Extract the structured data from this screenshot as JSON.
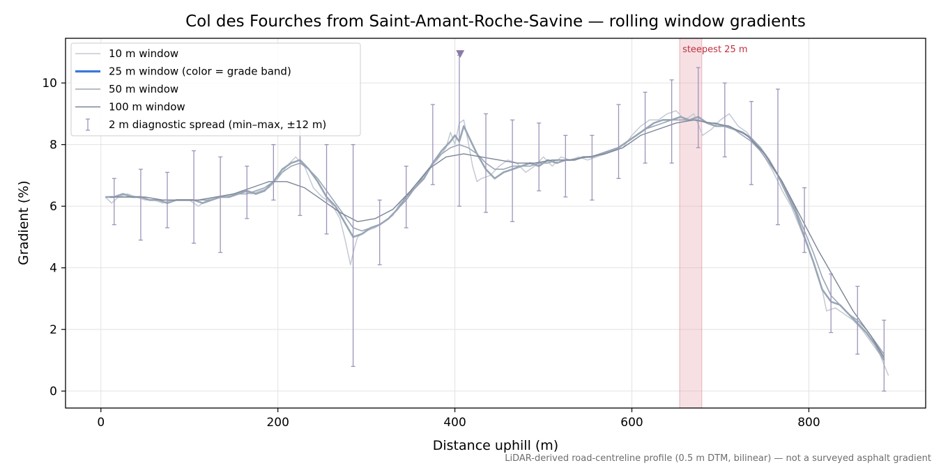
{
  "chart_data": {
    "type": "line",
    "title": "Col des Fourches from Saint-Amant-Roche-Savine — rolling window gradients",
    "xlabel": "Distance uphill (m)",
    "ylabel": "Gradient (%)",
    "xlim": [
      -40,
      932
    ],
    "ylim": [
      -0.55,
      11.45
    ],
    "xticks": [
      0,
      200,
      400,
      600,
      800
    ],
    "yticks": [
      0,
      2,
      4,
      6,
      8,
      10
    ],
    "grid": true,
    "legend_position": "upper-left",
    "footnote": "LiDAR-derived road-centreline profile (0.5 m DTM, bilinear) — not a surveyed asphalt gradient",
    "steepest_band": {
      "label": "steepest 25 m",
      "x_range": [
        654,
        679
      ],
      "color": "#e8a6ae"
    },
    "peak_marker": {
      "x": 406,
      "y": 10.95,
      "color": "#8a7aaa"
    },
    "colors": {
      "w10": "#c3c9d3",
      "w25": "#3b78d8",
      "w25_curve": "#98a6b5",
      "w50": "#9aa5b6",
      "w100": "#7a8496",
      "errorbar": "#9c93b8"
    },
    "series": [
      {
        "name": "10 m window",
        "x": [
          5,
          12,
          20,
          30,
          40,
          50,
          60,
          70,
          80,
          90,
          100,
          110,
          120,
          130,
          140,
          150,
          160,
          170,
          180,
          190,
          200,
          210,
          220,
          230,
          240,
          250,
          260,
          270,
          276,
          282,
          286,
          290,
          300,
          310,
          320,
          330,
          340,
          350,
          360,
          370,
          380,
          390,
          395,
          400,
          405,
          410,
          415,
          420,
          425,
          430,
          440,
          450,
          460,
          470,
          480,
          490,
          500,
          510,
          520,
          530,
          540,
          550,
          560,
          570,
          580,
          590,
          600,
          610,
          620,
          630,
          640,
          650,
          660,
          670,
          680,
          690,
          700,
          710,
          720,
          730,
          740,
          750,
          760,
          770,
          780,
          790,
          800,
          810,
          815,
          820,
          830,
          840,
          850,
          860,
          870,
          880,
          890
        ],
        "values": [
          6.3,
          6.1,
          6.3,
          6.4,
          6.3,
          6.2,
          6.2,
          6.1,
          6.2,
          6.2,
          6.2,
          6.0,
          6.2,
          6.3,
          6.3,
          6.4,
          6.5,
          6.4,
          6.5,
          6.6,
          6.9,
          7.3,
          7.6,
          7.3,
          6.6,
          6.3,
          6.1,
          5.6,
          4.9,
          4.1,
          4.6,
          5.0,
          5.2,
          5.3,
          5.5,
          5.7,
          6.2,
          6.4,
          6.8,
          7.2,
          7.5,
          7.9,
          8.4,
          8.0,
          8.7,
          8.8,
          8.1,
          7.3,
          6.8,
          6.9,
          7.0,
          7.3,
          7.5,
          7.4,
          7.1,
          7.3,
          7.6,
          7.3,
          7.6,
          7.5,
          7.6,
          7.5,
          7.6,
          7.7,
          7.8,
          7.9,
          8.3,
          8.6,
          8.8,
          8.8,
          9.0,
          9.1,
          8.8,
          9.0,
          8.3,
          8.5,
          8.8,
          9.0,
          8.6,
          8.4,
          8.0,
          7.6,
          7.1,
          6.5,
          6.0,
          5.3,
          4.6,
          3.8,
          3.3,
          2.6,
          2.7,
          2.5,
          2.3,
          2.0,
          1.6,
          1.2,
          0.5
        ]
      },
      {
        "name": "25 m window (color = grade band)",
        "x": [
          5,
          15,
          25,
          35,
          45,
          55,
          65,
          75,
          85,
          95,
          105,
          115,
          125,
          135,
          145,
          155,
          165,
          175,
          185,
          195,
          205,
          215,
          225,
          235,
          245,
          255,
          265,
          275,
          285,
          295,
          305,
          315,
          325,
          335,
          345,
          355,
          365,
          375,
          385,
          395,
          400,
          405,
          410,
          415,
          425,
          435,
          445,
          455,
          465,
          475,
          485,
          495,
          505,
          515,
          525,
          535,
          545,
          555,
          565,
          575,
          585,
          595,
          605,
          615,
          625,
          635,
          645,
          655,
          665,
          675,
          685,
          695,
          705,
          715,
          725,
          735,
          745,
          755,
          765,
          775,
          785,
          795,
          805,
          815,
          825,
          835,
          845,
          855,
          865,
          875,
          885
        ],
        "values": [
          6.3,
          6.3,
          6.4,
          6.3,
          6.3,
          6.2,
          6.2,
          6.1,
          6.2,
          6.2,
          6.2,
          6.1,
          6.2,
          6.3,
          6.3,
          6.4,
          6.5,
          6.4,
          6.5,
          6.8,
          7.2,
          7.4,
          7.5,
          7.2,
          6.8,
          6.3,
          6.0,
          5.5,
          5.0,
          5.1,
          5.3,
          5.4,
          5.6,
          5.9,
          6.3,
          6.6,
          6.9,
          7.4,
          7.8,
          8.1,
          8.3,
          8.1,
          8.6,
          8.3,
          7.7,
          7.2,
          6.9,
          7.1,
          7.2,
          7.3,
          7.4,
          7.3,
          7.5,
          7.4,
          7.5,
          7.5,
          7.6,
          7.6,
          7.7,
          7.8,
          7.9,
          8.1,
          8.3,
          8.5,
          8.7,
          8.8,
          8.8,
          8.9,
          8.8,
          8.9,
          8.7,
          8.6,
          8.6,
          8.5,
          8.4,
          8.2,
          7.9,
          7.5,
          7.0,
          6.4,
          5.8,
          5.0,
          4.2,
          3.3,
          2.9,
          2.8,
          2.5,
          2.2,
          1.9,
          1.5,
          1.0
        ]
      },
      {
        "name": "50 m window",
        "x": [
          5,
          15,
          25,
          35,
          45,
          55,
          65,
          75,
          85,
          95,
          105,
          115,
          125,
          135,
          145,
          155,
          165,
          175,
          185,
          195,
          205,
          215,
          225,
          235,
          245,
          255,
          265,
          275,
          285,
          295,
          305,
          315,
          325,
          335,
          345,
          355,
          365,
          375,
          385,
          395,
          405,
          415,
          425,
          435,
          445,
          455,
          465,
          475,
          485,
          495,
          505,
          515,
          525,
          535,
          545,
          555,
          565,
          575,
          585,
          595,
          605,
          615,
          625,
          635,
          645,
          655,
          665,
          675,
          685,
          695,
          705,
          715,
          725,
          735,
          745,
          755,
          765,
          775,
          785,
          795,
          805,
          815,
          825,
          835,
          845,
          855,
          865,
          875,
          885
        ],
        "values": [
          6.3,
          6.3,
          6.3,
          6.3,
          6.3,
          6.2,
          6.2,
          6.2,
          6.2,
          6.2,
          6.2,
          6.2,
          6.2,
          6.3,
          6.3,
          6.4,
          6.4,
          6.5,
          6.6,
          6.8,
          7.1,
          7.3,
          7.4,
          7.2,
          6.9,
          6.5,
          6.1,
          5.7,
          5.3,
          5.2,
          5.3,
          5.4,
          5.6,
          5.9,
          6.2,
          6.6,
          7.0,
          7.4,
          7.7,
          7.9,
          8.0,
          7.9,
          7.7,
          7.4,
          7.2,
          7.2,
          7.3,
          7.3,
          7.3,
          7.4,
          7.4,
          7.5,
          7.5,
          7.5,
          7.6,
          7.6,
          7.7,
          7.8,
          7.9,
          8.1,
          8.3,
          8.5,
          8.6,
          8.7,
          8.8,
          8.8,
          8.8,
          8.8,
          8.7,
          8.7,
          8.6,
          8.5,
          8.3,
          8.1,
          7.8,
          7.4,
          7.0,
          6.5,
          5.9,
          5.2,
          4.5,
          3.7,
          3.1,
          2.8,
          2.5,
          2.3,
          2.0,
          1.6,
          1.2
        ]
      },
      {
        "name": "100 m window",
        "x": [
          10,
          30,
          50,
          70,
          90,
          110,
          130,
          150,
          170,
          190,
          210,
          230,
          250,
          270,
          290,
          310,
          330,
          350,
          370,
          390,
          410,
          430,
          450,
          470,
          490,
          510,
          530,
          550,
          570,
          590,
          610,
          630,
          650,
          670,
          690,
          710,
          730,
          750,
          770,
          790,
          810,
          830,
          850,
          870,
          885
        ],
        "values": [
          6.3,
          6.3,
          6.3,
          6.2,
          6.2,
          6.2,
          6.3,
          6.4,
          6.6,
          6.8,
          6.8,
          6.6,
          6.2,
          5.8,
          5.5,
          5.6,
          5.9,
          6.5,
          7.2,
          7.6,
          7.7,
          7.6,
          7.5,
          7.4,
          7.4,
          7.5,
          7.5,
          7.6,
          7.7,
          7.9,
          8.3,
          8.5,
          8.7,
          8.8,
          8.7,
          8.6,
          8.3,
          7.7,
          6.8,
          5.7,
          4.6,
          3.6,
          2.6,
          1.8,
          1.1
        ]
      }
    ],
    "diagnostic_spread": {
      "name": "2 m diagnostic spread (min–max, ±12 m)",
      "x": [
        15,
        45,
        75,
        105,
        135,
        165,
        195,
        225,
        255,
        285,
        315,
        345,
        375,
        405,
        435,
        465,
        495,
        525,
        555,
        585,
        615,
        645,
        675,
        705,
        735,
        765,
        795,
        825,
        855,
        885
      ],
      "min": [
        5.4,
        4.9,
        5.3,
        4.8,
        4.5,
        5.6,
        6.2,
        5.7,
        5.1,
        0.8,
        4.1,
        5.3,
        6.7,
        6.0,
        5.8,
        5.5,
        6.5,
        6.3,
        6.2,
        6.9,
        7.4,
        7.4,
        7.9,
        7.6,
        6.7,
        5.4,
        4.5,
        1.9,
        1.2,
        0.0
      ],
      "max": [
        6.9,
        7.2,
        7.1,
        7.8,
        7.6,
        7.3,
        8.0,
        8.5,
        8.0,
        8.0,
        6.2,
        7.3,
        9.3,
        10.9,
        9.0,
        8.8,
        8.7,
        8.3,
        8.3,
        9.3,
        9.7,
        10.1,
        10.5,
        10.0,
        9.4,
        9.8,
        6.6,
        3.8,
        3.4,
        2.3
      ]
    }
  }
}
